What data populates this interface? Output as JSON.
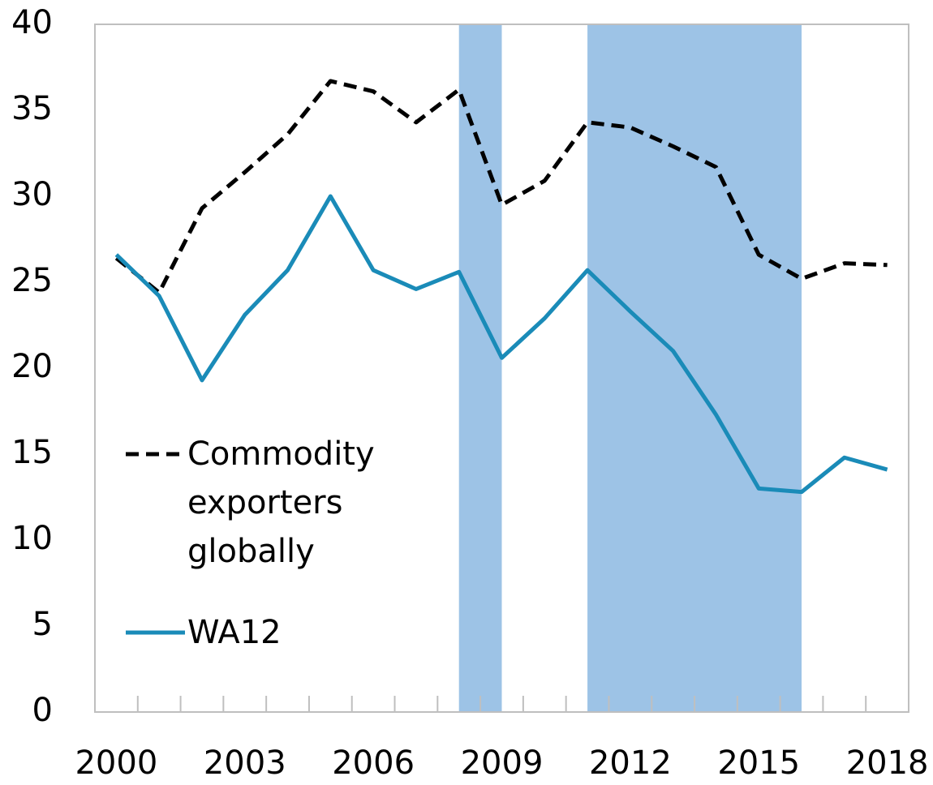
{
  "chart_data": {
    "type": "line",
    "x": [
      2000,
      2001,
      2002,
      2003,
      2004,
      2005,
      2006,
      2007,
      2008,
      2009,
      2010,
      2011,
      2012,
      2013,
      2014,
      2015,
      2016,
      2017,
      2018
    ],
    "series": [
      {
        "name": "Commodity exporters globally",
        "color": "#000000",
        "dash": true,
        "values": [
          26.4,
          24.4,
          29.3,
          31.4,
          33.6,
          36.7,
          36.1,
          34.3,
          36.2,
          29.5,
          30.9,
          34.3,
          34.0,
          32.9,
          31.7,
          26.6,
          25.2,
          26.1,
          26.0
        ]
      },
      {
        "name": "WA12",
        "color": "#1a8bb8",
        "dash": false,
        "values": [
          26.6,
          24.2,
          19.3,
          23.1,
          25.7,
          30.0,
          25.7,
          24.6,
          25.6,
          20.6,
          22.9,
          25.7,
          23.3,
          21.0,
          17.3,
          13.0,
          12.8,
          14.8,
          14.1
        ]
      }
    ],
    "shaded": [
      [
        2008,
        2009
      ],
      [
        2011,
        2016
      ]
    ],
    "shade_color": "#9dc3e6",
    "xlim": [
      1999.5,
      2018.5
    ],
    "xticks": [
      2000,
      2003,
      2006,
      2009,
      2012,
      2015,
      2018
    ],
    "ylim": [
      0,
      40
    ],
    "yticks": [
      0,
      5,
      10,
      15,
      20,
      25,
      30,
      35,
      40
    ],
    "legend": "lower left"
  }
}
